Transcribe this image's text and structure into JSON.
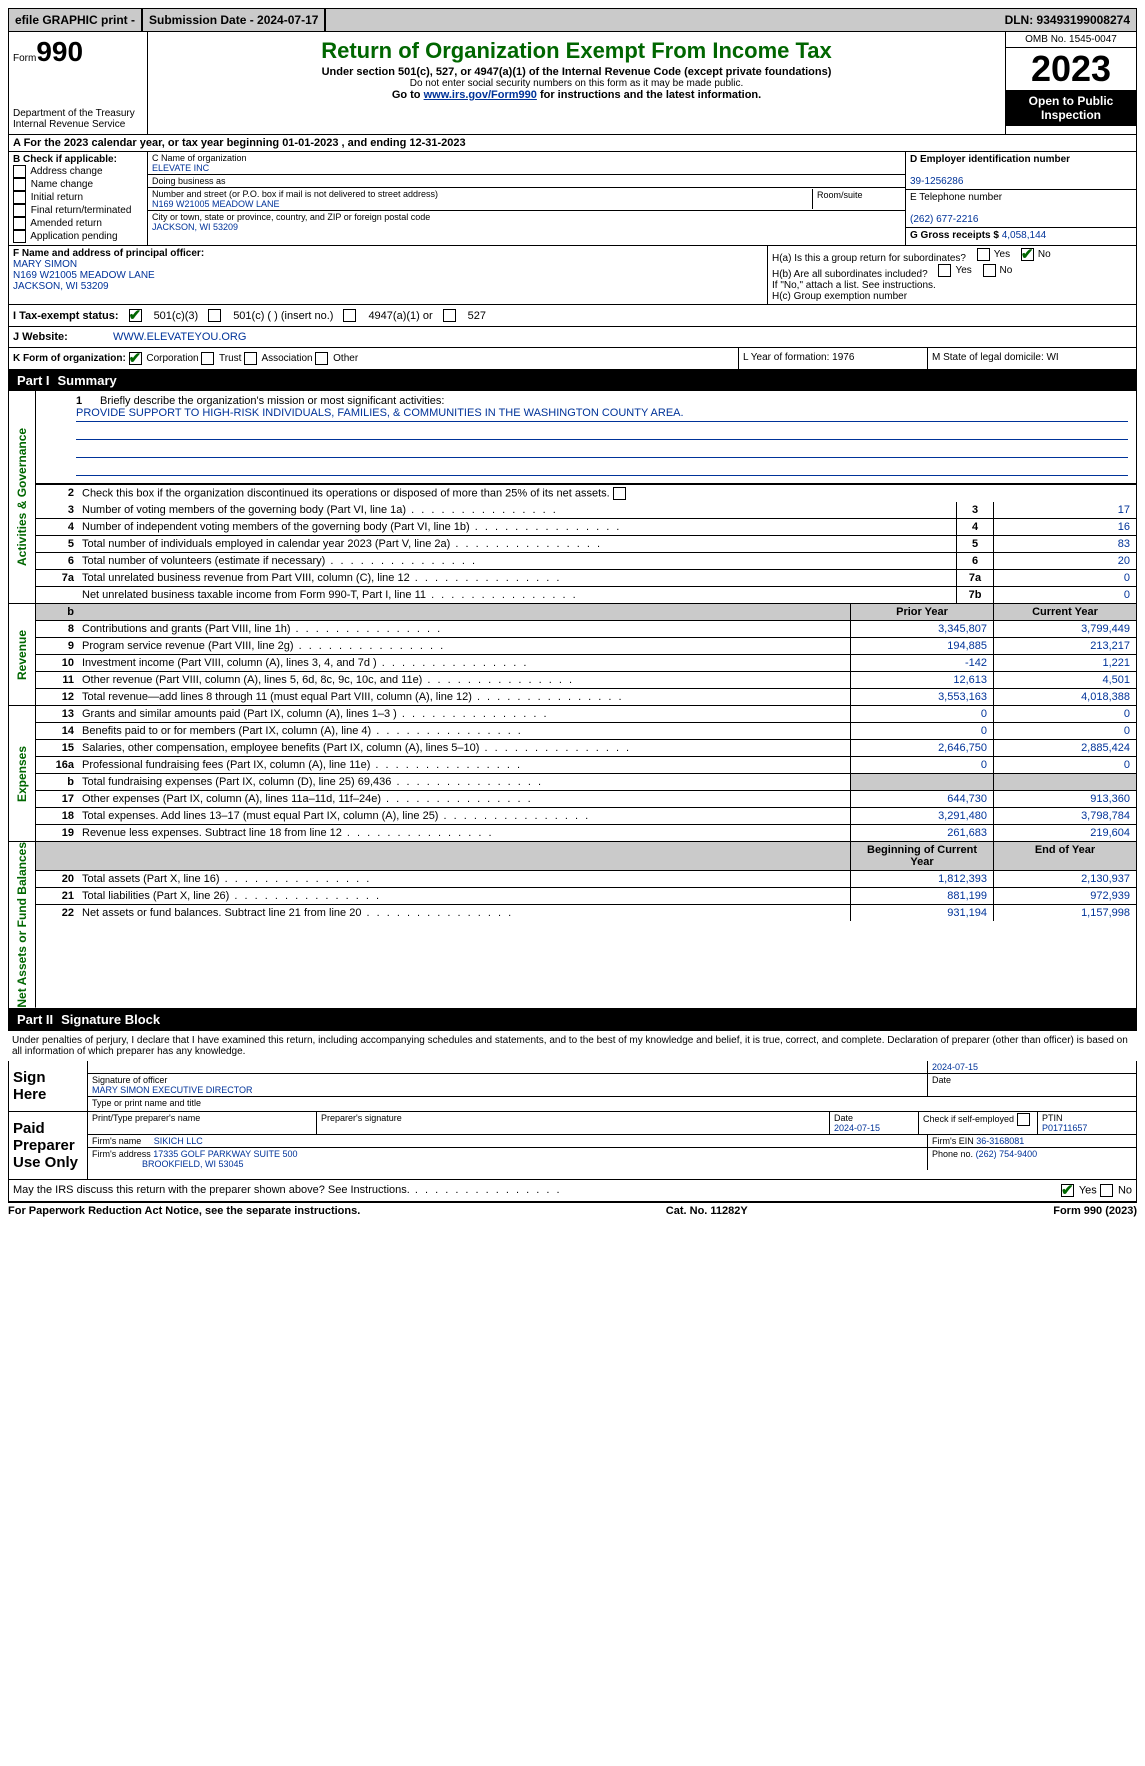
{
  "topbar": {
    "efile": "efile GRAPHIC print -",
    "sub_label": "Submission Date - 2024-07-17",
    "dln": "DLN: 93493199008274"
  },
  "header": {
    "form": "Form",
    "num": "990",
    "dept": "Department of the Treasury\nInternal Revenue Service",
    "title": "Return of Organization Exempt From Income Tax",
    "sub": "Under section 501(c), 527, or 4947(a)(1) of the Internal Revenue Code (except private foundations)",
    "sub2": "Do not enter social security numbers on this form as it may be made public.",
    "sub3_a": "Go to ",
    "sub3_link": "www.irs.gov/Form990",
    "sub3_b": " for instructions and the latest information.",
    "omb": "OMB No. 1545-0047",
    "year": "2023",
    "open": "Open to Public Inspection"
  },
  "rowA": "A For the 2023 calendar year, or tax year beginning 01-01-2023    , and ending 12-31-2023",
  "B": {
    "label": "B Check if applicable:",
    "items": [
      "Address change",
      "Name change",
      "Initial return",
      "Final return/terminated",
      "Amended return",
      "Application pending"
    ]
  },
  "C": {
    "name_lbl": "C Name of organization",
    "name": "ELEVATE INC",
    "dba_lbl": "Doing business as",
    "addr_lbl": "Number and street (or P.O. box if mail is not delivered to street address)",
    "room_lbl": "Room/suite",
    "addr": "N169 W21005 MEADOW LANE",
    "city_lbl": "City or town, state or province, country, and ZIP or foreign postal code",
    "city": "JACKSON, WI  53209"
  },
  "D": {
    "lbl": "D Employer identification number",
    "val": "39-1256286"
  },
  "E": {
    "lbl": "E Telephone number",
    "val": "(262) 677-2216"
  },
  "G": {
    "lbl": "G Gross receipts $",
    "val": "4,058,144"
  },
  "F": {
    "lbl": "F  Name and address of principal officer:",
    "name": "MARY SIMON",
    "addr": "N169 W21005 MEADOW LANE",
    "city": "JACKSON, WI  53209"
  },
  "H": {
    "a": "H(a)  Is this a group return for subordinates?",
    "b": "H(b)  Are all subordinates included?",
    "b2": "If \"No,\" attach a list. See instructions.",
    "c": "H(c)  Group exemption number"
  },
  "I": {
    "lbl": "I    Tax-exempt status:",
    "o1": "501(c)(3)",
    "o2": "501(c) (  ) (insert no.)",
    "o3": "4947(a)(1) or",
    "o4": "527"
  },
  "J": {
    "lbl": "J    Website:",
    "val": "WWW.ELEVATEYOU.ORG"
  },
  "K": {
    "lbl": "K Form of organization:",
    "o1": "Corporation",
    "o2": "Trust",
    "o3": "Association",
    "o4": "Other"
  },
  "L": {
    "lbl": "L Year of formation: 1976"
  },
  "M": {
    "lbl": "M State of legal domicile: WI"
  },
  "part1": {
    "hdr": "Part I",
    "title": "Summary"
  },
  "tabs": {
    "ag": "Activities & Governance",
    "rev": "Revenue",
    "exp": "Expenses",
    "net": "Net Assets or Fund Balances"
  },
  "l1": {
    "lbl": "Briefly describe the organization's mission or most significant activities:",
    "val": "PROVIDE SUPPORT TO HIGH-RISK INDIVIDUALS, FAMILIES, & COMMUNITIES IN THE WASHINGTON COUNTY AREA."
  },
  "l2": "Check this box       if the organization discontinued its operations or disposed of more than 25% of its net assets.",
  "lines_ag": [
    {
      "n": "3",
      "t": "Number of voting members of the governing body (Part VI, line 1a)",
      "b": "3",
      "v": "17"
    },
    {
      "n": "4",
      "t": "Number of independent voting members of the governing body (Part VI, line 1b)",
      "b": "4",
      "v": "16"
    },
    {
      "n": "5",
      "t": "Total number of individuals employed in calendar year 2023 (Part V, line 2a)",
      "b": "5",
      "v": "83"
    },
    {
      "n": "6",
      "t": "Total number of volunteers (estimate if necessary)",
      "b": "6",
      "v": "20"
    },
    {
      "n": "7a",
      "t": "Total unrelated business revenue from Part VIII, column (C), line 12",
      "b": "7a",
      "v": "0"
    },
    {
      "n": "",
      "t": "Net unrelated business taxable income from Form 990-T, Part I, line 11",
      "b": "7b",
      "v": "0"
    }
  ],
  "col_hdr": {
    "prior": "Prior Year",
    "curr": "Current Year",
    "beg": "Beginning of Current Year",
    "end": "End of Year"
  },
  "lines_rev": [
    {
      "n": "8",
      "t": "Contributions and grants (Part VIII, line 1h)",
      "p": "3,345,807",
      "c": "3,799,449"
    },
    {
      "n": "9",
      "t": "Program service revenue (Part VIII, line 2g)",
      "p": "194,885",
      "c": "213,217"
    },
    {
      "n": "10",
      "t": "Investment income (Part VIII, column (A), lines 3, 4, and 7d )",
      "p": "-142",
      "c": "1,221"
    },
    {
      "n": "11",
      "t": "Other revenue (Part VIII, column (A), lines 5, 6d, 8c, 9c, 10c, and 11e)",
      "p": "12,613",
      "c": "4,501"
    },
    {
      "n": "12",
      "t": "Total revenue—add lines 8 through 11 (must equal Part VIII, column (A), line 12)",
      "p": "3,553,163",
      "c": "4,018,388"
    }
  ],
  "lines_exp": [
    {
      "n": "13",
      "t": "Grants and similar amounts paid (Part IX, column (A), lines 1–3 )",
      "p": "0",
      "c": "0"
    },
    {
      "n": "14",
      "t": "Benefits paid to or for members (Part IX, column (A), line 4)",
      "p": "0",
      "c": "0"
    },
    {
      "n": "15",
      "t": "Salaries, other compensation, employee benefits (Part IX, column (A), lines 5–10)",
      "p": "2,646,750",
      "c": "2,885,424"
    },
    {
      "n": "16a",
      "t": "Professional fundraising fees (Part IX, column (A), line 11e)",
      "p": "0",
      "c": "0"
    },
    {
      "n": "b",
      "t": "Total fundraising expenses (Part IX, column (D), line 25) 69,436",
      "p": "",
      "c": "",
      "shade": true
    },
    {
      "n": "17",
      "t": "Other expenses (Part IX, column (A), lines 11a–11d, 11f–24e)",
      "p": "644,730",
      "c": "913,360"
    },
    {
      "n": "18",
      "t": "Total expenses. Add lines 13–17 (must equal Part IX, column (A), line 25)",
      "p": "3,291,480",
      "c": "3,798,784"
    },
    {
      "n": "19",
      "t": "Revenue less expenses. Subtract line 18 from line 12",
      "p": "261,683",
      "c": "219,604"
    }
  ],
  "lines_net": [
    {
      "n": "20",
      "t": "Total assets (Part X, line 16)",
      "p": "1,812,393",
      "c": "2,130,937"
    },
    {
      "n": "21",
      "t": "Total liabilities (Part X, line 26)",
      "p": "881,199",
      "c": "972,939"
    },
    {
      "n": "22",
      "t": "Net assets or fund balances. Subtract line 21 from line 20",
      "p": "931,194",
      "c": "1,157,998"
    }
  ],
  "part2": {
    "hdr": "Part II",
    "title": "Signature Block"
  },
  "perjury": "Under penalties of perjury, I declare that I have examined this return, including accompanying schedules and statements, and to the best of my knowledge and belief, it is true, correct, and complete. Declaration of preparer (other than officer) is based on all information of which preparer has any knowledge.",
  "sign": {
    "lbl": "Sign Here",
    "date": "2024-07-15",
    "sig_lbl": "Signature of officer",
    "name": "MARY SIMON  EXECUTIVE DIRECTOR",
    "name_lbl": "Type or print name and title",
    "date_lbl": "Date"
  },
  "prep": {
    "lbl": "Paid Preparer Use Only",
    "h1": "Print/Type preparer's name",
    "h2": "Preparer's signature",
    "h3": "Date",
    "h4": "Check       if self-employed",
    "h5": "PTIN",
    "date": "2024-07-15",
    "ptin": "P01711657",
    "firm_lbl": "Firm's name",
    "firm": "SIKICH LLC",
    "ein_lbl": "Firm's EIN",
    "ein": "36-3168081",
    "addr_lbl": "Firm's address",
    "addr1": "17335 GOLF PARKWAY SUITE 500",
    "addr2": "BROOKFIELD, WI  53045",
    "phone_lbl": "Phone no.",
    "phone": "(262) 754-9400"
  },
  "discuss": "May the IRS discuss this return with the preparer shown above? See Instructions.",
  "footer": {
    "l": "For Paperwork Reduction Act Notice, see the separate instructions.",
    "c": "Cat. No. 11282Y",
    "r": "Form 990 (2023)"
  },
  "yes": "Yes",
  "no": "No"
}
